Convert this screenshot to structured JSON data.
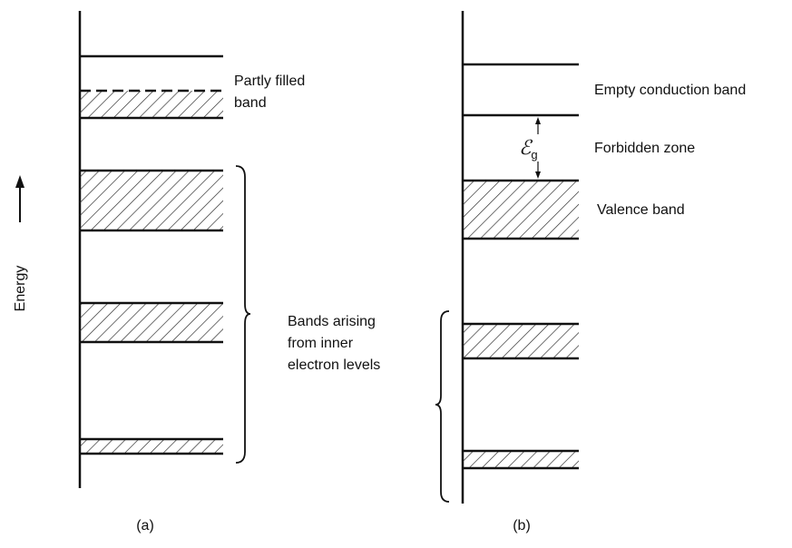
{
  "energy_label": "Energy",
  "panel_a": {
    "caption": "(a)",
    "partly_filled_label": [
      "Partly filled",
      "band"
    ],
    "inner_label": [
      "Bands arising",
      "from inner",
      "electron levels"
    ]
  },
  "panel_b": {
    "caption": "(b)",
    "conduction_label": "Empty conduction band",
    "forbidden_label": "Forbidden zone",
    "gap_symbol": "ℰ",
    "gap_subscript": "g",
    "valence_label": "Valence band"
  }
}
